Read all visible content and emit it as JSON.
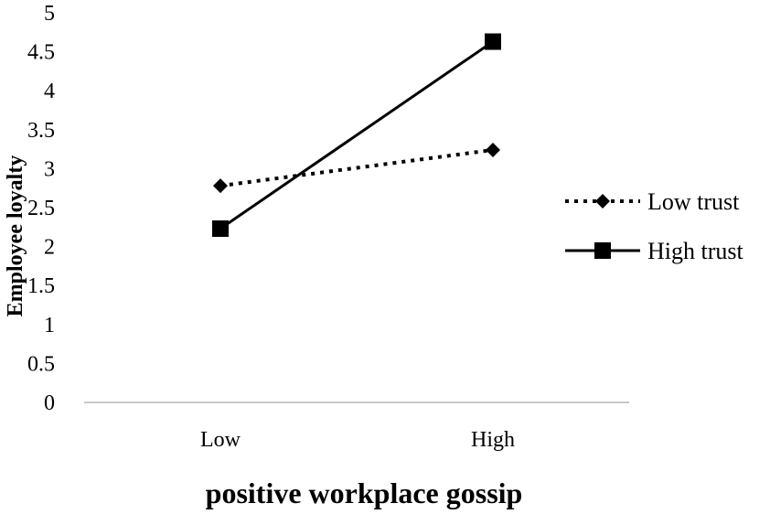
{
  "chart_data": {
    "type": "line",
    "categories": [
      "Low",
      "High"
    ],
    "series": [
      {
        "name": "Low trust",
        "values": [
          2.78,
          3.24
        ],
        "line_style": "dotted",
        "marker": "diamond",
        "color": "#000000"
      },
      {
        "name": "High trust",
        "values": [
          2.23,
          4.63
        ],
        "line_style": "solid",
        "marker": "square",
        "color": "#000000"
      }
    ],
    "xlabel": "positive workplace gossip",
    "ylabel": "Employee loyalty",
    "ylim": [
      0,
      5
    ],
    "yticks": [
      "0",
      "0.5",
      "1",
      "1.5",
      "2",
      "2.5",
      "3",
      "3.5",
      "4",
      "4.5",
      "5"
    ],
    "grid": false,
    "legend": "right"
  }
}
